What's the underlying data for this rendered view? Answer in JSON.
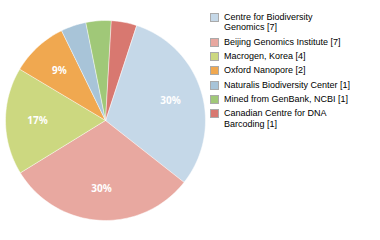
{
  "chart_data": {
    "type": "pie",
    "categories": [
      "Centre for Biodiversity\nGenomics [7]",
      "Beijing Genomics Institute [7]",
      "Macrogen, Korea [4]",
      "Oxford Nanopore [2]",
      "Naturalis Biodiversity Center [1]",
      "Mined from GenBank, NCBI [1]",
      "Canadian Centre for DNA\nBarcoding [1]"
    ],
    "values": [
      30,
      30,
      17,
      9,
      4,
      4,
      4
    ],
    "value_labels": [
      "30%",
      "30%",
      "17%",
      "9%",
      null,
      null,
      null
    ],
    "colors": [
      "#c5d8e8",
      "#e8a8a0",
      "#ccd880",
      "#f0a850",
      "#a8c4d8",
      "#a0c878",
      "#d87870"
    ],
    "data_labels": true,
    "legend": "right"
  }
}
